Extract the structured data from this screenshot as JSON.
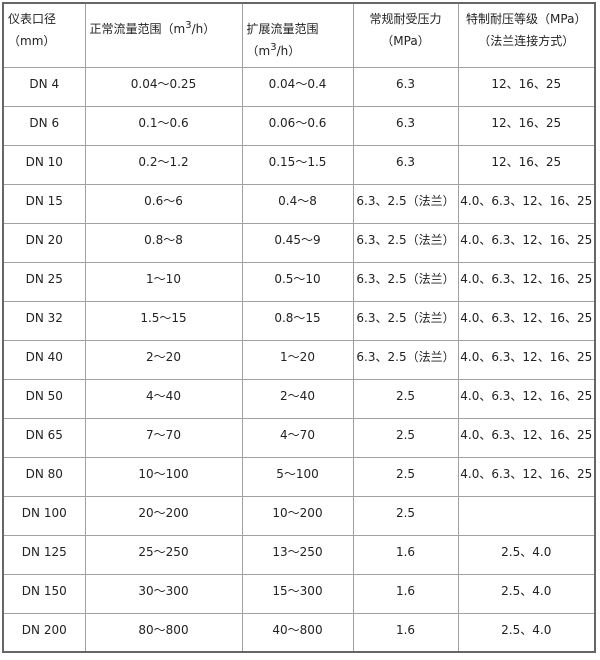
{
  "headers": {
    "diameter": "仪表口径（mm）",
    "normal_flow_prefix": "正常流量范围（m",
    "normal_flow_sup": "3",
    "normal_flow_suffix": "/h）",
    "extended_flow_prefix": "扩展流量范围（m",
    "extended_flow_sup": "3",
    "extended_flow_suffix": "/h）",
    "normal_pressure": "常规耐受压力（MPa）",
    "special_pressure": "特制耐压等级（MPa）（法兰连接方式）"
  },
  "rows": [
    [
      "DN 4",
      "0.04～0.25",
      "0.04～0.4",
      "6.3",
      "12、16、25"
    ],
    [
      "DN 6",
      "0.1～0.6",
      "0.06～0.6",
      "6.3",
      "12、16、25"
    ],
    [
      "DN 10",
      "0.2～1.2",
      "0.15～1.5",
      "6.3",
      "12、16、25"
    ],
    [
      "DN 15",
      "0.6～6",
      "0.4～8",
      "6.3、2.5（法兰）",
      "4.0、6.3、12、16、25"
    ],
    [
      "DN 20",
      "0.8～8",
      "0.45～9",
      "6.3、2.5（法兰）",
      "4.0、6.3、12、16、25"
    ],
    [
      "DN 25",
      "1～10",
      "0.5～10",
      "6.3、2.5（法兰）",
      "4.0、6.3、12、16、25"
    ],
    [
      "DN 32",
      "1.5～15",
      "0.8～15",
      "6.3、2.5（法兰）",
      "4.0、6.3、12、16、25"
    ],
    [
      "DN 40",
      "2～20",
      "1～20",
      "6.3、2.5（法兰）",
      "4.0、6.3、12、16、25"
    ],
    [
      "DN 50",
      "4～40",
      "2～40",
      "2.5",
      "4.0、6.3、12、16、25"
    ],
    [
      "DN 65",
      "7～70",
      "4～70",
      "2.5",
      "4.0、6.3、12、16、25"
    ],
    [
      "DN 80",
      "10～100",
      "5～100",
      "2.5",
      "4.0、6.3、12、16、25"
    ],
    [
      "DN 100",
      "20～200",
      "10～200",
      "2.5",
      ""
    ],
    [
      "DN 125",
      "25～250",
      "13～250",
      "1.6",
      "2.5、4.0"
    ],
    [
      "DN 150",
      "30～300",
      "15～300",
      "1.6",
      "2.5、4.0"
    ],
    [
      "DN 200",
      "80～800",
      "40～800",
      "1.6",
      "2.5、4.0"
    ]
  ]
}
